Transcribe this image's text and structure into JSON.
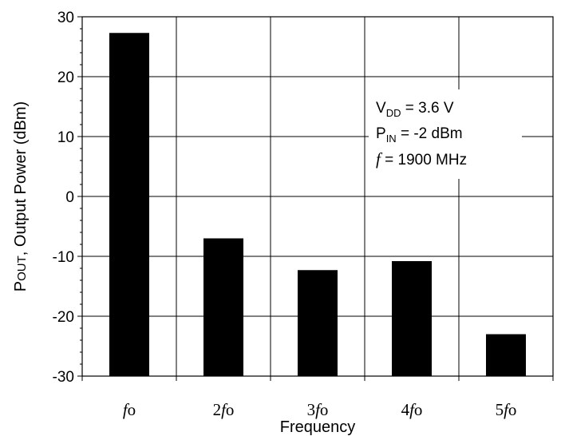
{
  "chart_data": {
    "type": "bar",
    "categories": [
      "fo",
      "2fo",
      "3fo",
      "4fo",
      "5fo"
    ],
    "category_labels": [
      {
        "prefix": "",
        "italic": "f",
        "suffix": "o"
      },
      {
        "prefix": "2",
        "italic": "f",
        "suffix": "o"
      },
      {
        "prefix": "3",
        "italic": "f",
        "suffix": "o"
      },
      {
        "prefix": "4",
        "italic": "f",
        "suffix": "o"
      },
      {
        "prefix": "5",
        "italic": "f",
        "suffix": "o"
      }
    ],
    "values": [
      27.3,
      -7.0,
      -12.3,
      -10.8,
      -23.0
    ],
    "ylim": [
      -30,
      30
    ],
    "yticks": [
      -30,
      -20,
      -10,
      0,
      10,
      20,
      30
    ],
    "ytick_labels": [
      "-30",
      "-20",
      "-10",
      "0",
      "10",
      "20",
      "30"
    ],
    "xlabel": "Frequency",
    "ylabel": {
      "p": "P",
      "out": "OUT",
      "rest": ", Output Power (dBm)"
    },
    "annotations": {
      "vdd": {
        "main": "V",
        "sub": "DD",
        "rest": " = 3.6 V"
      },
      "pin": {
        "main": "P",
        "sub": "IN",
        "rest": " = -2 dBm"
      },
      "freq": {
        "italic": "f",
        "rest": " = 1900 MHz"
      }
    },
    "grid": true,
    "bar_color": "#000000"
  }
}
